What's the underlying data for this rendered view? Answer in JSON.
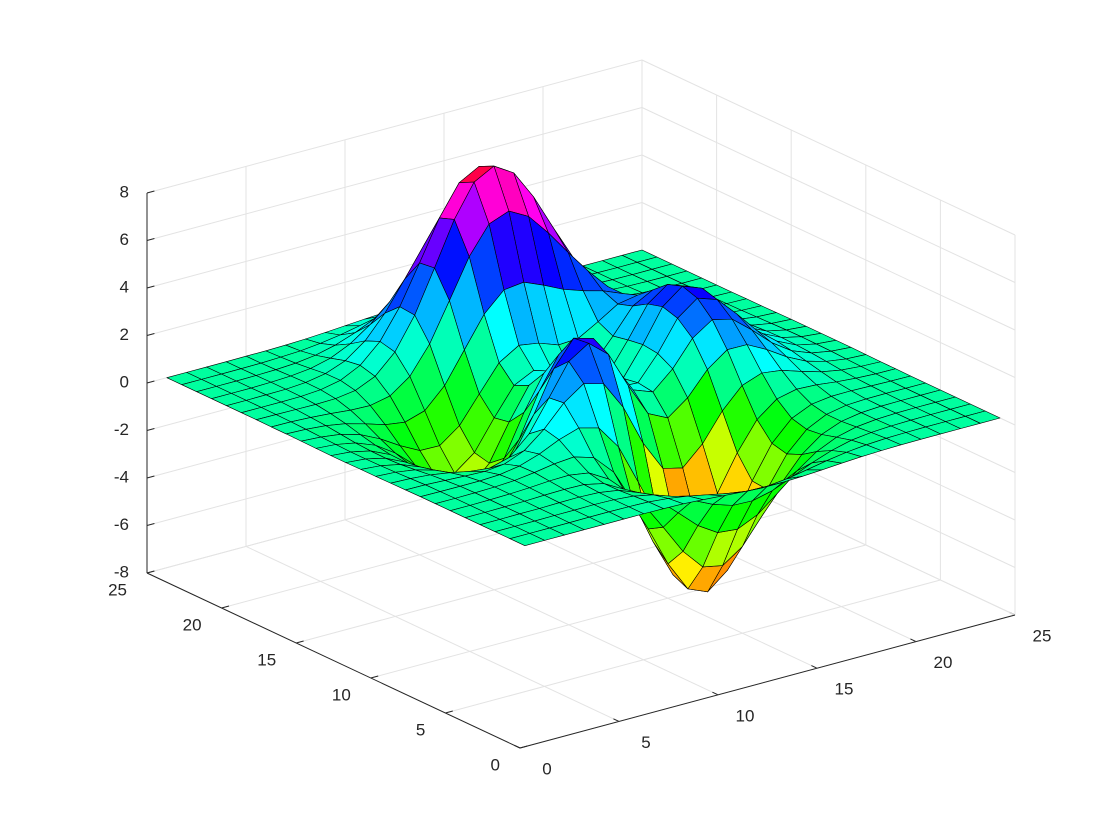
{
  "chart_data": {
    "type": "surface",
    "x": [
      1,
      2,
      3,
      4,
      5,
      6,
      7,
      8,
      9,
      10,
      11,
      12,
      13,
      14,
      15,
      16,
      17,
      18,
      19,
      20,
      21,
      22,
      23,
      24,
      25
    ],
    "y": [
      1,
      2,
      3,
      4,
      5,
      6,
      7,
      8,
      9,
      10,
      11,
      12,
      13,
      14,
      15,
      16,
      17,
      18,
      19,
      20,
      21,
      22,
      23,
      24,
      25
    ],
    "z": [
      [
        0,
        0,
        0,
        0,
        0,
        0,
        0,
        -0.01,
        -0.03,
        -0.08,
        -0.14,
        -0.2,
        -0.25,
        -0.25,
        -0.22,
        -0.17,
        -0.11,
        -0.06,
        -0.03,
        -0.01,
        0,
        0,
        0,
        0,
        0
      ],
      [
        0,
        0,
        0,
        0,
        0.01,
        0.01,
        0,
        -0.02,
        -0.1,
        -0.22,
        -0.39,
        -0.56,
        -0.68,
        -0.7,
        -0.61,
        -0.46,
        -0.3,
        -0.17,
        -0.08,
        -0.03,
        -0.01,
        0,
        0,
        0,
        0
      ],
      [
        0,
        0,
        0,
        0.01,
        0.01,
        0.02,
        0,
        -0.07,
        -0.24,
        -0.53,
        -0.92,
        -1.31,
        -1.58,
        -1.61,
        -1.41,
        -1.06,
        -0.69,
        -0.39,
        -0.18,
        -0.08,
        -0.03,
        -0.01,
        0,
        0,
        0
      ],
      [
        0,
        0,
        0.01,
        0.01,
        0.03,
        0.04,
        0.01,
        -0.12,
        -0.44,
        -0.99,
        -1.74,
        -2.5,
        -3.02,
        -3.1,
        -2.72,
        -2.05,
        -1.32,
        -0.73,
        -0.35,
        -0.14,
        -0.05,
        -0.01,
        0,
        0,
        0
      ],
      [
        0,
        0,
        0.01,
        0.02,
        0.05,
        0.07,
        0.05,
        -0.13,
        -0.59,
        -1.45,
        -2.64,
        -3.88,
        -4.76,
        -4.93,
        -4.35,
        -3.27,
        -2.1,
        -1.15,
        -0.53,
        -0.2,
        -0.06,
        -0.01,
        0,
        0,
        0
      ],
      [
        0,
        0,
        0.01,
        0.03,
        0.07,
        0.13,
        0.15,
        0.02,
        -0.46,
        -1.48,
        -3.01,
        -4.7,
        -5.98,
        -6.33,
        -5.64,
        -4.24,
        -2.69,
        -1.42,
        -0.61,
        -0.2,
        -0.04,
        0,
        0.01,
        0,
        0
      ],
      [
        0,
        0,
        0.01,
        0.03,
        0.08,
        0.19,
        0.33,
        0.4,
        0.15,
        -0.68,
        -2.18,
        -4.07,
        -5.68,
        -6.32,
        -5.76,
        -4.31,
        -2.63,
        -1.27,
        -0.44,
        -0.07,
        0.04,
        0.05,
        0.03,
        0.01,
        0
      ],
      [
        0,
        -0.01,
        -0.01,
        -0.01,
        0.03,
        0.17,
        0.45,
        0.83,
        1.1,
        0.88,
        -0.14,
        -1.85,
        -3.61,
        -4.61,
        -4.4,
        -3.22,
        -1.74,
        -0.56,
        0.08,
        0.27,
        0.23,
        0.13,
        0.06,
        0.02,
        0.01
      ],
      [
        -0.01,
        -0.02,
        -0.06,
        -0.1,
        -0.13,
        -0.04,
        0.3,
        0.98,
        1.86,
        2.45,
        2.22,
        1,
        -0.73,
        -2.02,
        -2.22,
        -1.43,
        -0.27,
        0.58,
        0.88,
        0.77,
        0.5,
        0.26,
        0.11,
        0.04,
        0.01
      ],
      [
        -0.02,
        -0.05,
        -0.12,
        -0.25,
        -0.42,
        -0.51,
        -0.28,
        0.49,
        1.78,
        3.09,
        3.63,
        2.94,
        1.4,
        0,
        -0.41,
        0.21,
        1.18,
        1.79,
        1.78,
        1.35,
        0.82,
        0.41,
        0.18,
        0.06,
        0.02
      ],
      [
        -0.03,
        -0.08,
        -0.2,
        -0.44,
        -0.8,
        -1.16,
        -1.21,
        -0.6,
        0.8,
        2.49,
        3.55,
        3.31,
        2,
        0.7,
        0.39,
        1.14,
        2.2,
        2.76,
        2.56,
        1.88,
        1.12,
        0.56,
        0.24,
        0.09,
        0.03
      ],
      [
        -0.03,
        -0.1,
        -0.27,
        -0.6,
        -1.14,
        -1.77,
        -2.16,
        -1.83,
        -0.56,
        1.23,
        2.56,
        2.63,
        1.58,
        0.52,
        0.48,
        1.49,
        2.75,
        3.37,
        3.09,
        2.25,
        1.34,
        0.67,
        0.28,
        0.1,
        0.03
      ],
      [
        -0.04,
        -0.11,
        -0.3,
        -0.69,
        -1.33,
        -2.14,
        -2.77,
        -2.71,
        -1.65,
        0.06,
        1.48,
        1.75,
        0.98,
        0.19,
        0.37,
        1.57,
        2.94,
        3.58,
        3.27,
        2.37,
        1.41,
        0.7,
        0.3,
        0.11,
        0.03
      ],
      [
        -0.04,
        -0.11,
        -0.29,
        -0.67,
        -1.32,
        -2.16,
        -2.87,
        -2.98,
        -2.15,
        -0.64,
        0.68,
        1.06,
        0.52,
        -0.03,
        0.28,
        1.47,
        2.76,
        3.36,
        3.06,
        2.22,
        1.32,
        0.66,
        0.28,
        0.1,
        0.03
      ],
      [
        -0.03,
        -0.09,
        -0.25,
        -0.57,
        -1.12,
        -1.85,
        -2.49,
        -2.64,
        -2,
        -0.76,
        0.38,
        0.79,
        0.46,
        0.09,
        0.37,
        1.34,
        2.38,
        2.83,
        2.56,
        1.85,
        1.09,
        0.54,
        0.23,
        0.08,
        0.03
      ],
      [
        -0.02,
        -0.07,
        -0.18,
        -0.42,
        -0.82,
        -1.33,
        -1.76,
        -1.78,
        -1.16,
        -0.05,
        1.04,
        1.55,
        1.42,
        1.12,
        1.17,
        1.65,
        2.17,
        2.32,
        1.99,
        1.4,
        0.82,
        0.4,
        0.17,
        0.06,
        0.02
      ],
      [
        -0.01,
        -0.04,
        -0.11,
        -0.25,
        -0.48,
        -0.74,
        -0.86,
        -0.6,
        0.23,
        1.51,
        2.79,
        3.59,
        3.69,
        3.34,
        2.94,
        2.66,
        2.43,
        2.09,
        1.58,
        1.04,
        0.58,
        0.28,
        0.11,
        0.04,
        0.01
      ],
      [
        -0.01,
        -0.02,
        -0.06,
        -0.12,
        -0.2,
        -0.23,
        -0.05,
        0.55,
        1.69,
        3.29,
        4.92,
        6.07,
        6.39,
        5.94,
        5.02,
        3.97,
        2.97,
        2.09,
        1.36,
        0.79,
        0.41,
        0.19,
        0.07,
        0.03,
        0.01
      ],
      [
        0,
        -0.01,
        -0.02,
        -0.03,
        -0.01,
        0.11,
        0.48,
        1.28,
        2.61,
        4.37,
        6.19,
        7.54,
        7.99,
        7.48,
        6.25,
        4.72,
        3.25,
        2.05,
        1.18,
        0.62,
        0.29,
        0.12,
        0.05,
        0.02,
        0
      ],
      [
        0,
        0,
        0,
        0.01,
        0.07,
        0.24,
        0.65,
        1.43,
        2.67,
        4.29,
        5.96,
        7.22,
        7.68,
        7.2,
        5.99,
        4.45,
        2.96,
        1.78,
        0.96,
        0.47,
        0.21,
        0.08,
        0.03,
        0.01,
        0
      ],
      [
        0,
        0,
        0.01,
        0.02,
        0.08,
        0.23,
        0.55,
        1.16,
        2.1,
        3.31,
        4.56,
        5.51,
        5.86,
        5.5,
        4.57,
        3.37,
        2.21,
        1.29,
        0.68,
        0.32,
        0.13,
        0.05,
        0.02,
        0,
        0
      ],
      [
        0,
        0,
        0,
        0.02,
        0.06,
        0.15,
        0.36,
        0.74,
        1.32,
        2.07,
        2.84,
        3.43,
        3.65,
        3.43,
        2.84,
        2.09,
        1.36,
        0.79,
        0.41,
        0.19,
        0.08,
        0.03,
        0.01,
        0,
        0
      ],
      [
        0,
        0,
        0,
        0.01,
        0.03,
        0.08,
        0.19,
        0.39,
        0.69,
        1.07,
        1.47,
        1.78,
        1.89,
        1.77,
        1.47,
        1.08,
        0.7,
        0.4,
        0.21,
        0.09,
        0.04,
        0.01,
        0,
        0,
        0
      ],
      [
        0,
        0,
        0,
        0,
        0.01,
        0.04,
        0.08,
        0.17,
        0.3,
        0.47,
        0.64,
        0.77,
        0.82,
        0.77,
        0.64,
        0.47,
        0.3,
        0.17,
        0.09,
        0.04,
        0.02,
        0.01,
        0,
        0,
        0
      ],
      [
        0,
        0,
        0,
        0,
        0.01,
        0.01,
        0.03,
        0.06,
        0.11,
        0.17,
        0.23,
        0.28,
        0.3,
        0.28,
        0.23,
        0.17,
        0.11,
        0.06,
        0.03,
        0.01,
        0.01,
        0,
        0,
        0,
        0
      ]
    ],
    "xlim": [
      0,
      25
    ],
    "ylim": [
      0,
      25
    ],
    "zlim": [
      -8,
      8
    ],
    "xticks": [
      0,
      5,
      10,
      15,
      20,
      25
    ],
    "yticks": [
      0,
      5,
      10,
      15,
      20,
      25
    ],
    "zticks": [
      -8,
      -6,
      -4,
      -2,
      0,
      2,
      4,
      6,
      8
    ],
    "colormap": "hsv",
    "edge_color": "#000000",
    "grid": true
  }
}
